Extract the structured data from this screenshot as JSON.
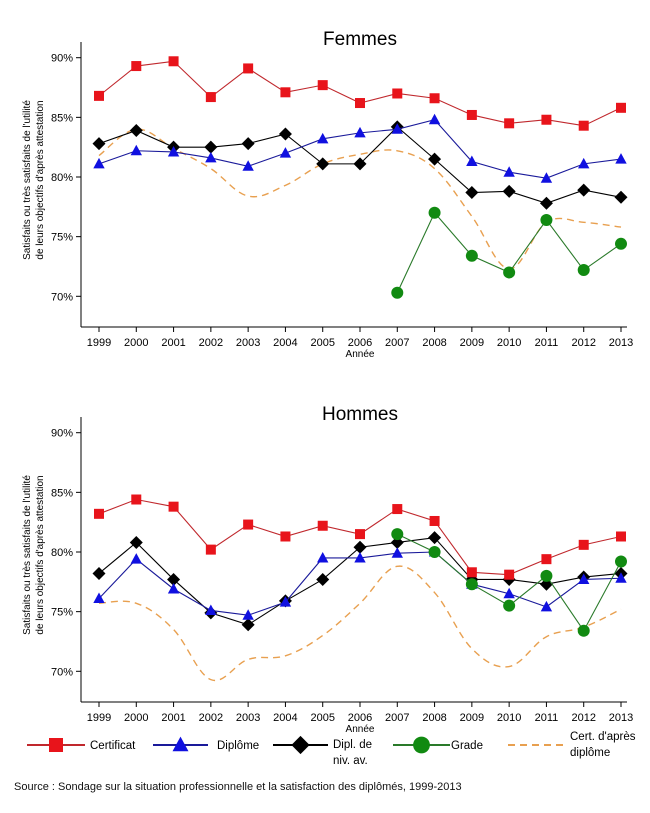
{
  "chart_data": [
    {
      "type": "line",
      "title": "Femmes",
      "xlabel": "Année",
      "ylabel": "Satisfaits ou très satisfaits de l'utilité de leurs objectifs d'après attestation",
      "ylabel_lines": [
        "Satisfaits ou très satisfaits de l'utilité",
        "de leurs objectifs d'après attestation"
      ],
      "ylim": [
        67,
        91
      ],
      "yticks": [
        70,
        75,
        80,
        85,
        90
      ],
      "ytick_labels": [
        "70%",
        "75%",
        "80%",
        "85%",
        "90%"
      ],
      "x": [
        1999,
        2000,
        2001,
        2002,
        2003,
        2004,
        2005,
        2006,
        2007,
        2008,
        2009,
        2010,
        2011,
        2012,
        2013
      ],
      "grid": false,
      "series": [
        {
          "name": "Certificat",
          "values": [
            86.8,
            89.3,
            89.7,
            86.7,
            89.1,
            87.1,
            87.7,
            86.2,
            87.0,
            86.6,
            85.2,
            84.5,
            84.8,
            84.3,
            85.8
          ]
        },
        {
          "name": "Diplôme",
          "values": [
            81.1,
            82.2,
            82.1,
            81.6,
            80.9,
            82.0,
            83.2,
            83.7,
            84.0,
            84.8,
            81.3,
            80.4,
            79.9,
            81.1,
            81.5
          ]
        },
        {
          "name": "Dipl. de niv. av.",
          "values": [
            82.8,
            83.9,
            82.5,
            82.5,
            82.8,
            83.6,
            81.1,
            81.1,
            84.2,
            81.5,
            78.7,
            78.8,
            77.8,
            78.9,
            78.3
          ]
        },
        {
          "name": "Grade",
          "values": [
            null,
            null,
            null,
            null,
            null,
            null,
            null,
            null,
            70.3,
            77.0,
            73.4,
            72.0,
            76.4,
            72.2,
            74.4
          ]
        },
        {
          "name": "Cert. d'après diplôme",
          "values": [
            81.8,
            84.0,
            82.4,
            80.7,
            78.4,
            79.3,
            81.1,
            81.9,
            82.2,
            80.7,
            76.7,
            72.3,
            76.2,
            76.2,
            75.8
          ]
        }
      ]
    },
    {
      "type": "line",
      "title": "Hommes",
      "xlabel": "Année",
      "ylabel": "Satisfaits ou très satisfaits de l'utilité de leurs objectifs d'après attestation",
      "ylabel_lines": [
        "Satisfaits ou très satisfaits de l'utilité",
        "de leurs objectifs d'après attestation"
      ],
      "ylim": [
        67,
        91
      ],
      "yticks": [
        70,
        75,
        80,
        85,
        90
      ],
      "ytick_labels": [
        "70%",
        "75%",
        "80%",
        "85%",
        "90%"
      ],
      "x": [
        1999,
        2000,
        2001,
        2002,
        2003,
        2004,
        2005,
        2006,
        2007,
        2008,
        2009,
        2010,
        2011,
        2012,
        2013
      ],
      "grid": false,
      "series": [
        {
          "name": "Certificat",
          "values": [
            83.2,
            84.4,
            83.8,
            80.2,
            82.3,
            81.3,
            82.2,
            81.5,
            83.6,
            82.6,
            78.3,
            78.1,
            79.4,
            80.6,
            81.3
          ]
        },
        {
          "name": "Diplôme",
          "values": [
            76.1,
            79.4,
            76.9,
            75.1,
            74.7,
            75.8,
            79.5,
            79.5,
            79.9,
            80.0,
            77.3,
            76.5,
            75.4,
            77.7,
            77.8
          ]
        },
        {
          "name": "Dipl. de niv. av.",
          "values": [
            78.2,
            80.8,
            77.7,
            74.9,
            73.9,
            75.9,
            77.7,
            80.4,
            80.8,
            81.2,
            77.7,
            77.7,
            77.3,
            77.9,
            78.2
          ]
        },
        {
          "name": "Grade",
          "values": [
            null,
            null,
            null,
            null,
            null,
            null,
            null,
            null,
            81.5,
            80.0,
            77.3,
            75.5,
            78.0,
            73.4,
            79.2
          ]
        },
        {
          "name": "Cert. d'après diplôme",
          "values": [
            75.7,
            75.7,
            73.5,
            69.3,
            71.0,
            71.3,
            73.0,
            75.7,
            78.8,
            76.6,
            71.9,
            70.4,
            72.9,
            73.7,
            75.2
          ]
        }
      ]
    }
  ],
  "legend": {
    "placement": "bottom",
    "items": [
      {
        "name": "Certificat",
        "lines": [
          "Certificat"
        ],
        "color": "#e8141b",
        "line_color": "#c0282d",
        "marker": "square",
        "dashed": false
      },
      {
        "name": "Diplôme",
        "lines": [
          "Diplôme"
        ],
        "color": "#1010e0",
        "line_color": "#1a1a9a",
        "marker": "triangle",
        "dashed": false
      },
      {
        "name": "Dipl. de niv. av.",
        "lines": [
          "Dipl. de",
          "niv. av."
        ],
        "color": "#000000",
        "line_color": "#000000",
        "marker": "diamond",
        "dashed": false
      },
      {
        "name": "Grade",
        "lines": [
          "Grade"
        ],
        "color": "#118a11",
        "line_color": "#2a7a2a",
        "marker": "circle",
        "dashed": false
      },
      {
        "name": "Cert. d'après diplôme",
        "lines": [
          "Cert. d'après",
          "diplôme"
        ],
        "color": "#e8a050",
        "line_color": "#e8a050",
        "marker": "none",
        "dashed": true
      }
    ]
  },
  "source": "Source : Sondage sur la situation professionnelle et la satisfaction des diplômés, 1999-2013"
}
